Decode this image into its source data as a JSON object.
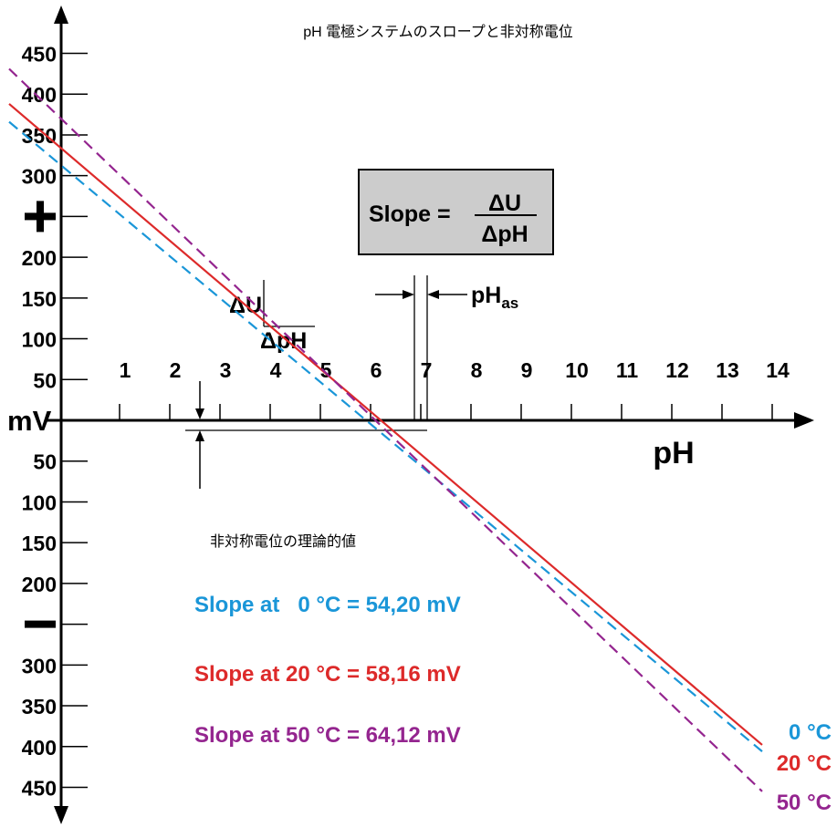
{
  "chart_data": {
    "type": "line",
    "title": "pH 電極システムのスロープと非対称電位",
    "xlabel": "pH",
    "ylabel": "mV",
    "x_ticks": [
      1,
      2,
      3,
      4,
      5,
      6,
      7,
      8,
      9,
      10,
      11,
      12,
      13,
      14
    ],
    "y_ticks_positive": [
      {
        "value": 450,
        "label": "450"
      },
      {
        "value": 400,
        "label": "400"
      },
      {
        "value": 350,
        "label": "350"
      },
      {
        "value": 300,
        "label": "300"
      },
      {
        "value": 250,
        "label": "+"
      },
      {
        "value": 200,
        "label": "200"
      },
      {
        "value": 150,
        "label": "150"
      },
      {
        "value": 100,
        "label": "100"
      },
      {
        "value": 50,
        "label": "50"
      }
    ],
    "y_ticks_negative": [
      {
        "value": -50,
        "label": "50"
      },
      {
        "value": -100,
        "label": "100"
      },
      {
        "value": -150,
        "label": "150"
      },
      {
        "value": -200,
        "label": "200"
      },
      {
        "value": -250,
        "label": "–"
      },
      {
        "value": -300,
        "label": "300"
      },
      {
        "value": -350,
        "label": "350"
      },
      {
        "value": -400,
        "label": "400"
      },
      {
        "value": -450,
        "label": "450"
      }
    ],
    "y_zero_label": "mV",
    "xlim": [
      -1.2,
      14.7
    ],
    "ylim": [
      -460,
      460
    ],
    "x_intercept": 6.8,
    "series": [
      {
        "name": "0 °C",
        "label_text": "0 °C",
        "color": "#1a96d8",
        "dash": true,
        "slope": 54.2,
        "points": [
          [
            -1.2,
            366
          ],
          [
            13.8,
            -406
          ]
        ]
      },
      {
        "name": "20 °C",
        "label_text": "20 °C",
        "color": "#dd2a2a",
        "dash": false,
        "slope": 58.16,
        "points": [
          [
            -1.2,
            388
          ],
          [
            13.8,
            -398
          ]
        ]
      },
      {
        "name": "50 °C",
        "label_text": "50 °C",
        "color": "#94258f",
        "dash": true,
        "slope": 64.12,
        "points": [
          [
            -1.2,
            431
          ],
          [
            13.8,
            -455
          ]
        ]
      }
    ],
    "slope_formula": {
      "prefix": "Slope = ",
      "numerator": "ΔU",
      "denominator": "ΔpH"
    },
    "asymmetry_label_main": "pH",
    "asymmetry_label_sub": "as",
    "delta_u_label": "ΔU",
    "delta_ph_label": "ΔpH",
    "annotation_asymmetry": "非対称電位の理論的値",
    "legend_lines": [
      {
        "text": "Slope at   0 °C = 54,20 mV",
        "color": "#1a96d8"
      },
      {
        "text": "Slope at 20 °C = 58,16 mV",
        "color": "#dd2a2a"
      },
      {
        "text": "Slope at 50 °C = 64,12 mV",
        "color": "#94258f"
      }
    ],
    "colors": {
      "axis": "#000000",
      "box_fill": "#cccccc"
    }
  }
}
